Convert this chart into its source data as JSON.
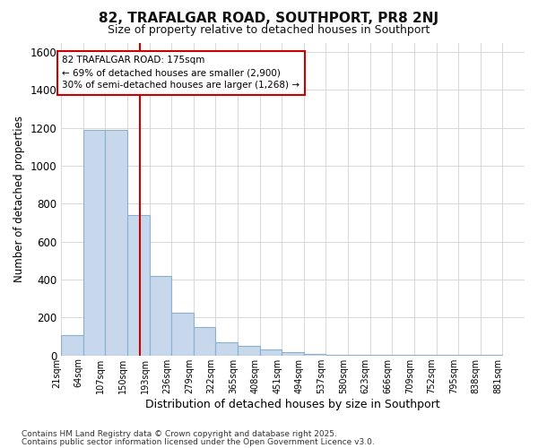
{
  "title": "82, TRAFALGAR ROAD, SOUTHPORT, PR8 2NJ",
  "subtitle": "Size of property relative to detached houses in Southport",
  "xlabel": "Distribution of detached houses by size in Southport",
  "ylabel": "Number of detached properties",
  "footnote1": "Contains HM Land Registry data © Crown copyright and database right 2025.",
  "footnote2": "Contains public sector information licensed under the Open Government Licence v3.0.",
  "annotation_title": "82 TRAFALGAR ROAD: 175sqm",
  "annotation_line1": "← 69% of detached houses are smaller (2,900)",
  "annotation_line2": "30% of semi-detached houses are larger (1,268) →",
  "property_size_sqm": 175,
  "bar_values": [
    105,
    1190,
    1190,
    740,
    420,
    225,
    150,
    70,
    50,
    30,
    15,
    8,
    5,
    3,
    2,
    1,
    1,
    1,
    1,
    1
  ],
  "categories": [
    "21sqm",
    "64sqm",
    "107sqm",
    "150sqm",
    "193sqm",
    "236sqm",
    "279sqm",
    "322sqm",
    "365sqm",
    "408sqm",
    "451sqm",
    "494sqm",
    "537sqm",
    "580sqm",
    "623sqm",
    "666sqm",
    "709sqm",
    "752sqm",
    "795sqm",
    "838sqm",
    "881sqm"
  ],
  "bar_color": "#c8d8ec",
  "bar_edge_color": "#8ab0d0",
  "marker_color": "#cc0000",
  "annotation_box_color": "#cc0000",
  "grid_color": "#d8d8d8",
  "bg_color": "#ffffff",
  "ylim": [
    0,
    1650
  ],
  "yticks": [
    0,
    200,
    400,
    600,
    800,
    1000,
    1200,
    1400,
    1600
  ]
}
